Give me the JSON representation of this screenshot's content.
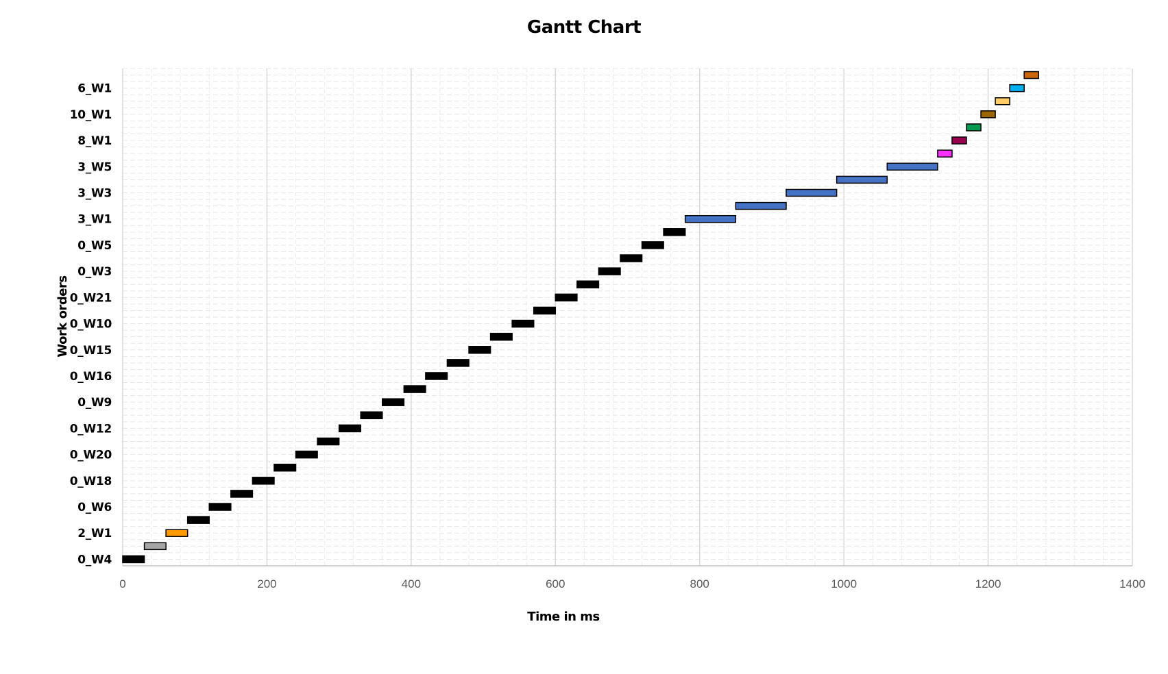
{
  "chart_data": {
    "type": "gantt",
    "title": "Gantt Chart",
    "xlabel": "Time in ms",
    "ylabel": "Work orders",
    "xlim": [
      0,
      1400
    ],
    "x_ticks": [
      0,
      200,
      400,
      600,
      800,
      1000,
      1200,
      1400
    ],
    "y_tick_labels": [
      "0_W4",
      "2_W1",
      "0_W6",
      "0_W18",
      "0_W20",
      "0_W12",
      "0_W9",
      "0_W16",
      "0_W15",
      "0_W10",
      "0_W21",
      "0_W3",
      "0_W5",
      "3_W1",
      "3_W3",
      "3_W5",
      "8_W1",
      "10_W1",
      "6_W1"
    ],
    "grid": true,
    "bars_bottom_to_top": [
      {
        "start": 0,
        "end": 30,
        "color": "#000000"
      },
      {
        "start": 30,
        "end": 60,
        "color": "#a5a5a5"
      },
      {
        "start": 60,
        "end": 90,
        "color": "#ff9900"
      },
      {
        "start": 90,
        "end": 120,
        "color": "#000000"
      },
      {
        "start": 120,
        "end": 150,
        "color": "#000000"
      },
      {
        "start": 150,
        "end": 180,
        "color": "#000000"
      },
      {
        "start": 180,
        "end": 210,
        "color": "#000000"
      },
      {
        "start": 210,
        "end": 240,
        "color": "#000000"
      },
      {
        "start": 240,
        "end": 270,
        "color": "#000000"
      },
      {
        "start": 270,
        "end": 300,
        "color": "#000000"
      },
      {
        "start": 300,
        "end": 330,
        "color": "#000000"
      },
      {
        "start": 330,
        "end": 360,
        "color": "#000000"
      },
      {
        "start": 360,
        "end": 390,
        "color": "#000000"
      },
      {
        "start": 390,
        "end": 420,
        "color": "#000000"
      },
      {
        "start": 420,
        "end": 450,
        "color": "#000000"
      },
      {
        "start": 450,
        "end": 480,
        "color": "#000000"
      },
      {
        "start": 480,
        "end": 510,
        "color": "#000000"
      },
      {
        "start": 510,
        "end": 540,
        "color": "#000000"
      },
      {
        "start": 540,
        "end": 570,
        "color": "#000000"
      },
      {
        "start": 570,
        "end": 600,
        "color": "#000000"
      },
      {
        "start": 600,
        "end": 630,
        "color": "#000000"
      },
      {
        "start": 630,
        "end": 660,
        "color": "#000000"
      },
      {
        "start": 660,
        "end": 690,
        "color": "#000000"
      },
      {
        "start": 690,
        "end": 720,
        "color": "#000000"
      },
      {
        "start": 720,
        "end": 750,
        "color": "#000000"
      },
      {
        "start": 750,
        "end": 780,
        "color": "#000000"
      },
      {
        "start": 780,
        "end": 850,
        "color": "#4472c4"
      },
      {
        "start": 850,
        "end": 920,
        "color": "#4472c4"
      },
      {
        "start": 920,
        "end": 990,
        "color": "#4472c4"
      },
      {
        "start": 990,
        "end": 1060,
        "color": "#4472c4"
      },
      {
        "start": 1060,
        "end": 1130,
        "color": "#4472c4"
      },
      {
        "start": 1130,
        "end": 1150,
        "color": "#ff33ff"
      },
      {
        "start": 1150,
        "end": 1170,
        "color": "#99004d"
      },
      {
        "start": 1170,
        "end": 1190,
        "color": "#00994d"
      },
      {
        "start": 1190,
        "end": 1210,
        "color": "#996600"
      },
      {
        "start": 1210,
        "end": 1230,
        "color": "#ffcc66"
      },
      {
        "start": 1230,
        "end": 1250,
        "color": "#00b0f0"
      },
      {
        "start": 1250,
        "end": 1270,
        "color": "#cc6600"
      }
    ]
  }
}
